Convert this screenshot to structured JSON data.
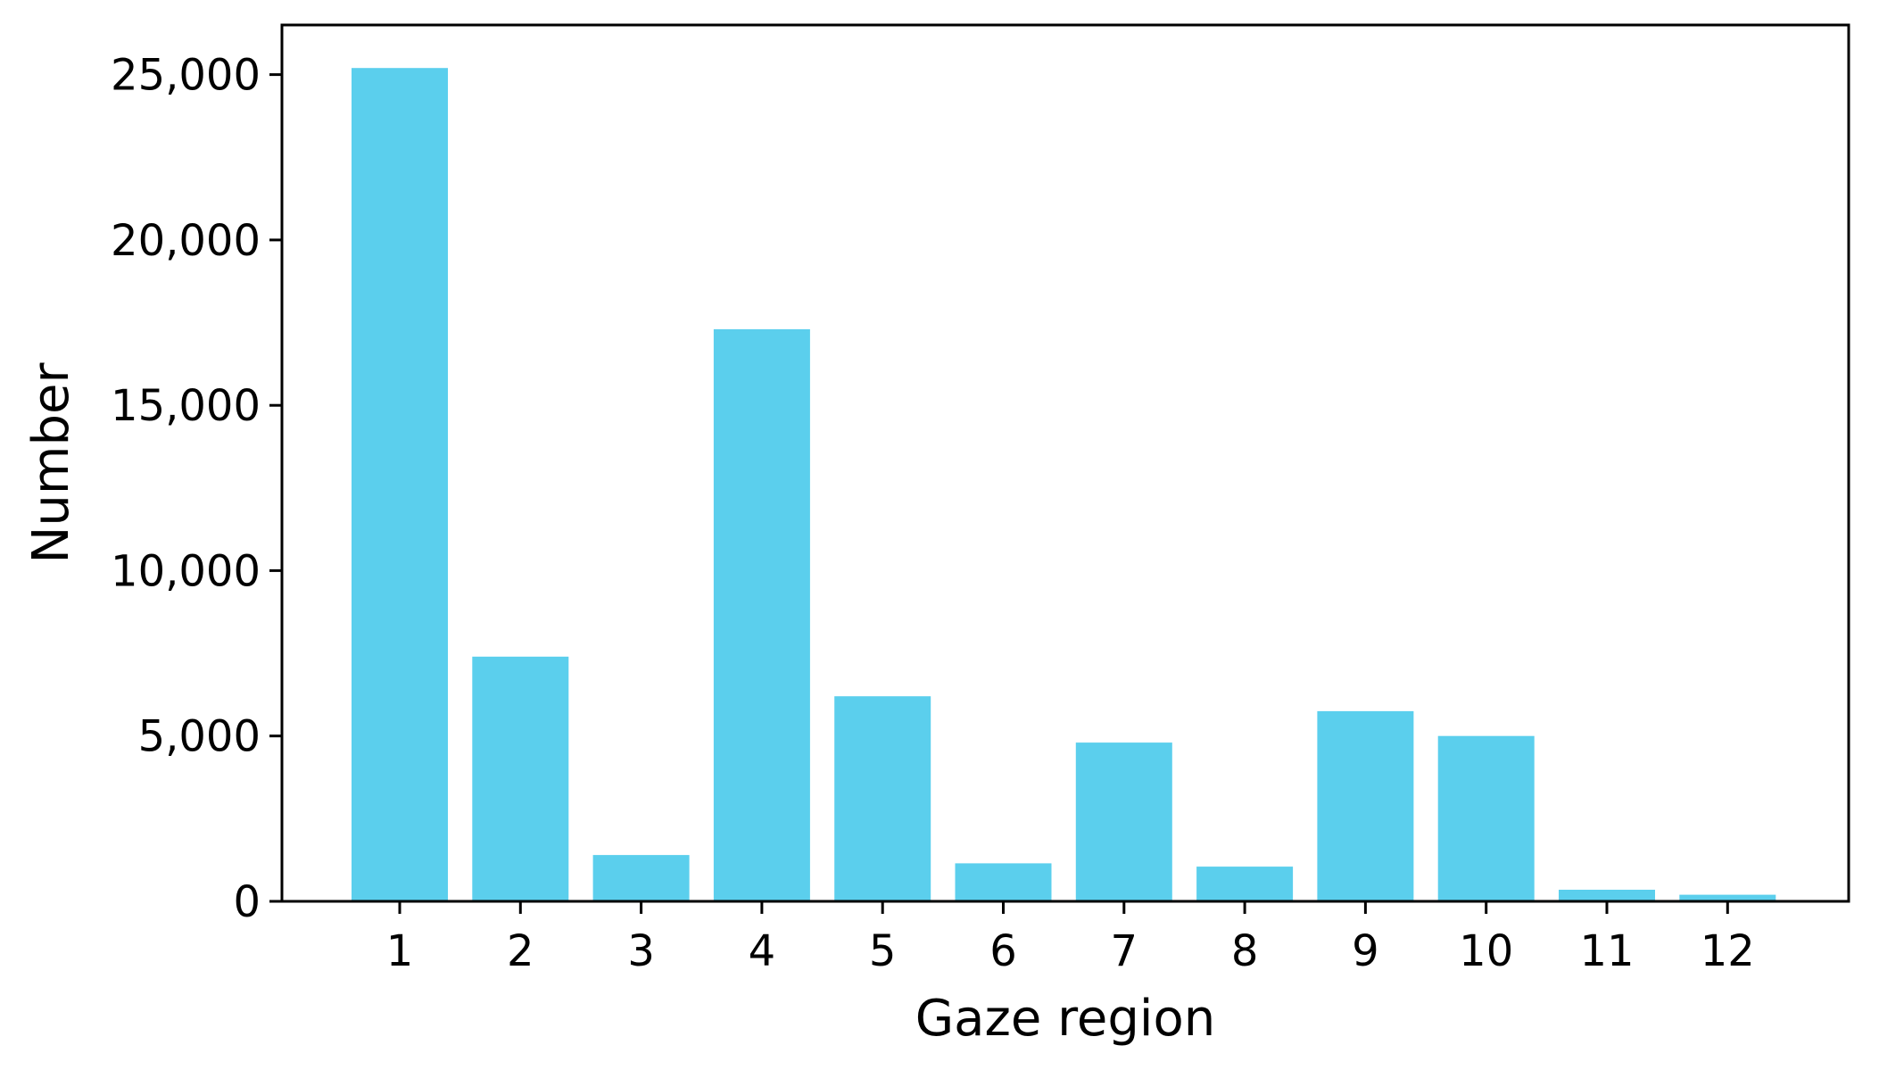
{
  "chart_data": {
    "type": "bar",
    "title": "",
    "xlabel": "Gaze region",
    "ylabel": "Number",
    "categories": [
      "1",
      "2",
      "3",
      "4",
      "5",
      "6",
      "7",
      "8",
      "9",
      "10",
      "11",
      "12"
    ],
    "values": [
      25200,
      7400,
      1400,
      17300,
      6200,
      1150,
      4800,
      1050,
      5750,
      5000,
      350,
      200
    ],
    "ylim": [
      0,
      26500
    ],
    "yticks": [
      0,
      5000,
      10000,
      15000,
      20000,
      25000
    ],
    "ytick_labels": [
      "0",
      "5,000",
      "10,000",
      "15,000",
      "20,000",
      "25,000"
    ],
    "bar_color": "#5bcfed",
    "grid": false,
    "legend": "none"
  }
}
